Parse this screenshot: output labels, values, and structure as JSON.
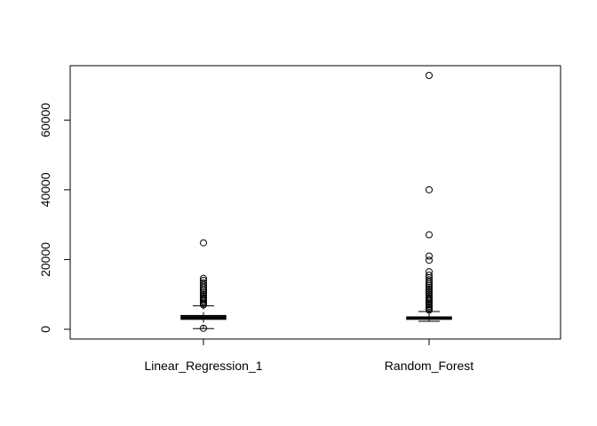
{
  "chart_data": {
    "type": "boxplot",
    "categories": [
      "Linear_Regression_1",
      "Random_Forest"
    ],
    "y_ticks": [
      0,
      20000,
      40000,
      60000
    ],
    "y_tick_labels": [
      "0",
      "20000",
      "40000",
      "60000"
    ],
    "ylim": [
      -2800,
      75600
    ],
    "grid": false,
    "legend": "none",
    "boxes": [
      {
        "name": "Linear_Regression_1",
        "whisker_low": 200,
        "q1": 2900,
        "median": 3300,
        "q3": 3900,
        "whisker_high": 6700,
        "outliers": [
          24800,
          14600,
          14000,
          13300,
          12700,
          12100,
          11500,
          11000,
          10500,
          10000,
          9500,
          9000,
          8600,
          8200,
          7800,
          7400,
          7000,
          300
        ]
      },
      {
        "name": "Random_Forest",
        "whisker_low": 2300,
        "q1": 2900,
        "median": 3200,
        "q3": 3500,
        "whisker_high": 5100,
        "outliers": [
          72800,
          40000,
          27100,
          21000,
          19800,
          16500,
          15500,
          14800,
          14200,
          13600,
          13000,
          12500,
          12000,
          11500,
          11000,
          10500,
          10000,
          9500,
          9000,
          8600,
          8200,
          7800,
          7400,
          7000,
          6600,
          6200,
          5800,
          5500
        ]
      }
    ]
  }
}
